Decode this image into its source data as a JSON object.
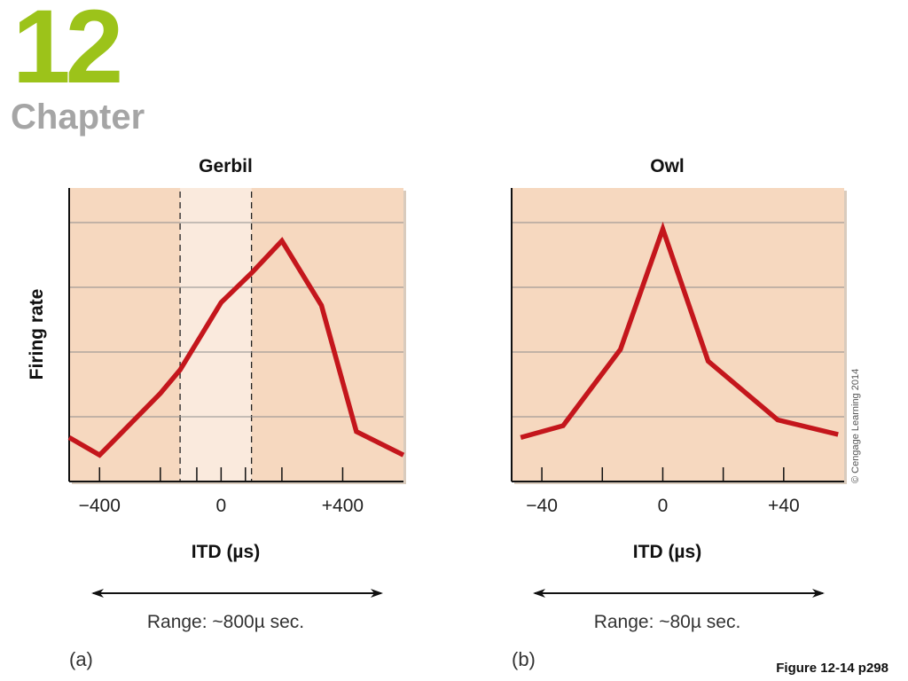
{
  "chapter": {
    "number": "12",
    "word": "Chapter"
  },
  "figure_label": "Figure 12-14 p298",
  "copyright": "© Cengage Learning 2014",
  "colors": {
    "line": "#c4161c",
    "plot_bg": "#f6d8bf",
    "highlight_bg": "#faeadd",
    "accent": "#9cc31a"
  },
  "chart_data": [
    {
      "type": "line",
      "title": "Gerbil",
      "panel": "(a)",
      "xlabel": "ITD (µs)",
      "ylabel": "Firing rate",
      "range_text": "Range: ~800µ sec.",
      "xticks": [
        -400,
        -200,
        -80,
        0,
        80,
        200,
        400
      ],
      "xtick_labels": [
        {
          "value": -400,
          "label": "−400"
        },
        {
          "value": 0,
          "label": "0"
        },
        {
          "value": 400,
          "label": "+400"
        }
      ],
      "xlim": [
        -500,
        600
      ],
      "ylim": [
        0,
        1
      ],
      "highlight_range": [
        -135,
        100
      ],
      "x": [
        -500,
        -400,
        -200,
        -135,
        0,
        100,
        200,
        330,
        445,
        600
      ],
      "y": [
        0.15,
        0.09,
        0.3,
        0.38,
        0.61,
        0.71,
        0.82,
        0.6,
        0.17,
        0.09
      ]
    },
    {
      "type": "line",
      "title": "Owl",
      "panel": "(b)",
      "xlabel": "ITD (µs)",
      "range_text": "Range: ~80µ sec.",
      "xticks": [
        -40,
        -20,
        0,
        20,
        40
      ],
      "xtick_labels": [
        {
          "value": -40,
          "label": "−40"
        },
        {
          "value": 0,
          "label": "0"
        },
        {
          "value": 40,
          "label": "+40"
        }
      ],
      "xlim": [
        -50,
        60
      ],
      "ylim": [
        0,
        1
      ],
      "x": [
        -47,
        -33,
        -14,
        0,
        15,
        38,
        58
      ],
      "y": [
        0.15,
        0.19,
        0.45,
        0.86,
        0.41,
        0.21,
        0.16
      ]
    }
  ]
}
